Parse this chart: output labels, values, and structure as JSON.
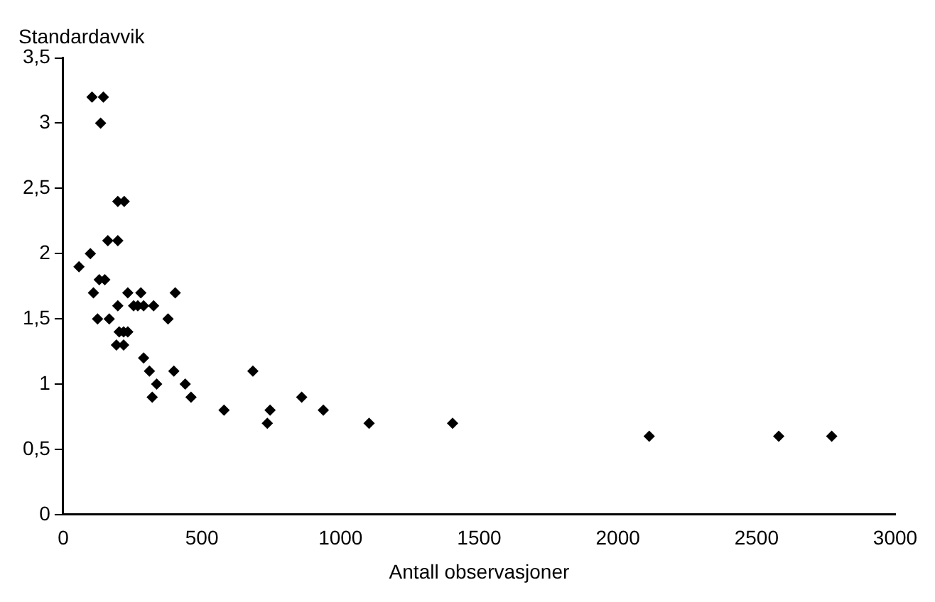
{
  "chart_data": {
    "type": "scatter",
    "xlabel": "Antall observasjoner",
    "ylabel": "Standardavvik",
    "x": [
      57,
      98,
      104,
      145,
      135,
      197,
      220,
      161,
      197,
      109,
      124,
      166,
      233,
      280,
      404,
      130,
      150,
      197,
      254,
      269,
      290,
      326,
      378,
      202,
      218,
      233,
      192,
      218,
      290,
      311,
      399,
      337,
      440,
      321,
      461,
      580,
      684,
      736,
      746,
      860,
      938,
      1103,
      1404,
      2113,
      2580,
      2771
    ],
    "values": [
      1.9,
      2.0,
      3.2,
      3.2,
      3.0,
      2.4,
      2.4,
      2.1,
      2.1,
      1.7,
      1.5,
      1.5,
      1.7,
      1.7,
      1.7,
      1.8,
      1.8,
      1.6,
      1.6,
      1.6,
      1.6,
      1.6,
      1.5,
      1.4,
      1.4,
      1.4,
      1.3,
      1.3,
      1.2,
      1.1,
      1.1,
      1.0,
      1.0,
      0.9,
      0.9,
      0.8,
      1.1,
      0.7,
      0.8,
      0.9,
      0.8,
      0.7,
      0.7,
      0.6,
      0.6,
      0.6
    ],
    "color": "#000000",
    "marker": "diamond",
    "grid": false,
    "legend": false,
    "xlim": [
      0,
      3000
    ],
    "xticks": [
      0,
      500,
      1000,
      1500,
      2000,
      2500,
      3000
    ],
    "ylim": [
      0,
      3.5
    ],
    "yticks": [
      {
        "value": 0,
        "label": "0"
      },
      {
        "value": 0.5,
        "label": "0,5"
      },
      {
        "value": 1,
        "label": "1"
      },
      {
        "value": 1.5,
        "label": "1,5"
      },
      {
        "value": 2,
        "label": "2"
      },
      {
        "value": 2.5,
        "label": "2,5"
      },
      {
        "value": 3,
        "label": "3"
      },
      {
        "value": 3.5,
        "label": "3,5"
      }
    ]
  }
}
